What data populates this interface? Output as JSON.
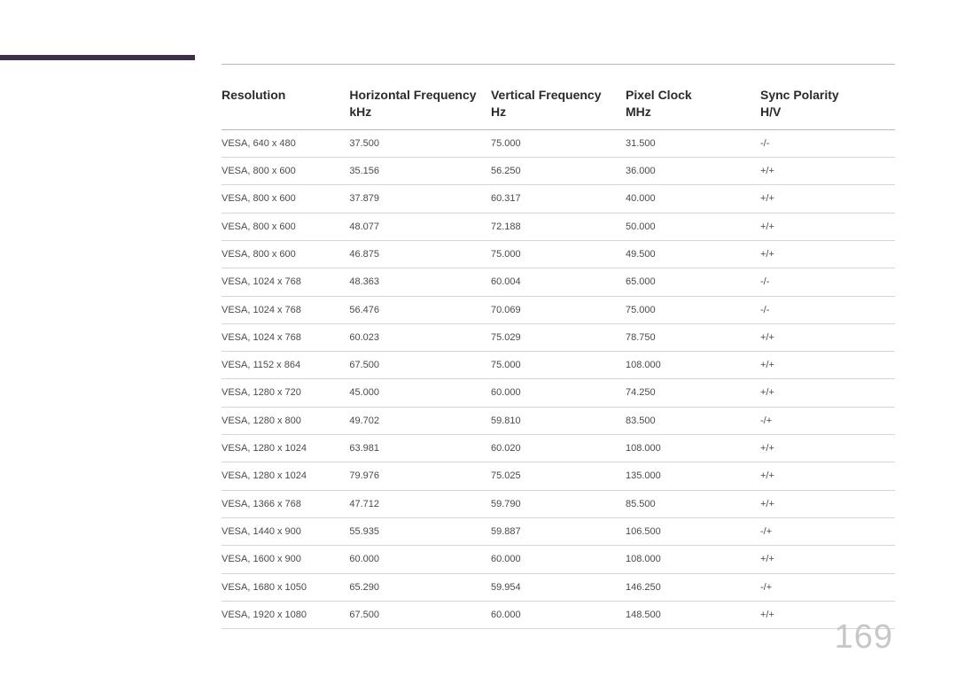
{
  "page_number": "169",
  "accent_bar_color": "#3d2f4a",
  "table": {
    "columns": [
      {
        "label_line1": "Resolution",
        "label_line2": "",
        "width": "19%"
      },
      {
        "label_line1": "Horizontal Frequency",
        "label_line2": "kHz",
        "width": "21%"
      },
      {
        "label_line1": "Vertical Frequency",
        "label_line2": "Hz",
        "width": "20%"
      },
      {
        "label_line1": "Pixel Clock",
        "label_line2": "MHz",
        "width": "20%"
      },
      {
        "label_line1": "Sync Polarity",
        "label_line2": "H/V",
        "width": "20%"
      }
    ],
    "rows": [
      [
        "VESA, 640 x 480",
        "37.500",
        "75.000",
        "31.500",
        "-/-"
      ],
      [
        "VESA, 800 x 600",
        "35.156",
        "56.250",
        "36.000",
        "+/+"
      ],
      [
        "VESA, 800 x 600",
        "37.879",
        "60.317",
        "40.000",
        "+/+"
      ],
      [
        "VESA, 800 x 600",
        "48.077",
        "72.188",
        "50.000",
        "+/+"
      ],
      [
        "VESA, 800 x 600",
        "46.875",
        "75.000",
        "49.500",
        "+/+"
      ],
      [
        "VESA, 1024 x 768",
        "48.363",
        "60.004",
        "65.000",
        "-/-"
      ],
      [
        "VESA, 1024 x 768",
        "56.476",
        "70.069",
        "75.000",
        "-/-"
      ],
      [
        "VESA, 1024 x 768",
        "60.023",
        "75.029",
        "78.750",
        "+/+"
      ],
      [
        "VESA, 1152 x 864",
        "67.500",
        "75.000",
        "108.000",
        "+/+"
      ],
      [
        "VESA, 1280 x 720",
        "45.000",
        "60.000",
        "74.250",
        "+/+"
      ],
      [
        "VESA, 1280 x 800",
        "49.702",
        "59.810",
        "83.500",
        "-/+"
      ],
      [
        "VESA, 1280 x 1024",
        "63.981",
        "60.020",
        "108.000",
        "+/+"
      ],
      [
        "VESA, 1280 x 1024",
        "79.976",
        "75.025",
        "135.000",
        "+/+"
      ],
      [
        "VESA, 1366 x 768",
        "47.712",
        "59.790",
        "85.500",
        "+/+"
      ],
      [
        "VESA, 1440 x 900",
        "55.935",
        "59.887",
        "106.500",
        "-/+"
      ],
      [
        "VESA, 1600 x 900",
        "60.000",
        "60.000",
        "108.000",
        "+/+"
      ],
      [
        "VESA, 1680 x 1050",
        "65.290",
        "59.954",
        "146.250",
        "-/+"
      ],
      [
        "VESA, 1920 x 1080",
        "67.500",
        "60.000",
        "148.500",
        "+/+"
      ]
    ]
  }
}
